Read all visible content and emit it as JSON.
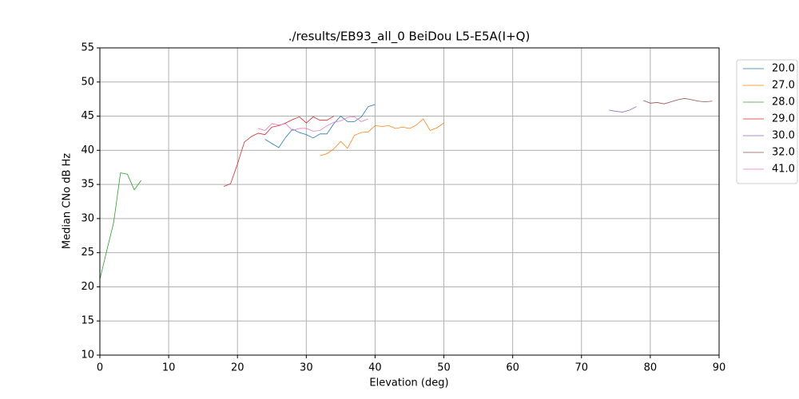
{
  "chart_data": {
    "type": "line",
    "title": "./results/EB93_all_0 BeiDou L5-E5A(I+Q)",
    "x_label": "Elevation (deg)",
    "y_label": "Median CNo dB Hz",
    "xlim": [
      0,
      90
    ],
    "ylim": [
      10,
      55
    ],
    "xticks": [
      0,
      10,
      20,
      30,
      40,
      50,
      60,
      70,
      80,
      90
    ],
    "yticks": [
      10,
      15,
      20,
      25,
      30,
      35,
      40,
      45,
      50,
      55
    ],
    "grid": true,
    "legend": "outside-upper-right",
    "series": [
      {
        "name": "20.0",
        "color": "#1f77b4",
        "x": [
          24,
          25,
          26,
          27,
          28,
          29,
          30,
          31,
          32,
          33,
          34,
          35,
          36,
          37,
          38,
          39,
          40
        ],
        "values": [
          41.6,
          41.0,
          40.4,
          41.9,
          43.1,
          42.6,
          42.3,
          41.8,
          42.4,
          42.4,
          43.9,
          45.0,
          44.2,
          44.2,
          44.9,
          46.4,
          46.7
        ]
      },
      {
        "name": "27.0",
        "color": "#ff7f0e",
        "x": [
          32,
          33,
          34,
          35,
          36,
          37,
          38,
          39,
          40,
          41,
          42,
          43,
          44,
          45,
          46,
          47,
          48,
          49,
          50
        ],
        "values": [
          39.2,
          39.5,
          40.2,
          41.3,
          40.3,
          42.2,
          42.6,
          42.7,
          43.6,
          43.5,
          43.6,
          43.2,
          43.4,
          43.2,
          43.7,
          44.6,
          42.9,
          43.3,
          44.0
        ]
      },
      {
        "name": "28.0",
        "color": "#2ca02c",
        "x": [
          0,
          1,
          2,
          3,
          4,
          5,
          6
        ],
        "values": [
          21.1,
          25.3,
          29.4,
          36.7,
          36.5,
          34.2,
          35.6
        ]
      },
      {
        "name": "29.0",
        "color": "#d62728",
        "x": [
          18,
          19,
          20,
          21,
          22,
          23,
          24,
          25,
          26,
          27,
          28,
          29,
          30,
          31,
          32,
          33,
          34
        ],
        "values": [
          34.7,
          35.1,
          38.0,
          41.2,
          42.0,
          42.5,
          42.3,
          43.4,
          43.6,
          44.0,
          44.5,
          44.9,
          44.0,
          44.9,
          44.4,
          44.4,
          45.0
        ]
      },
      {
        "name": "30.0",
        "color": "#9467bd",
        "x": [
          74,
          75,
          76,
          77,
          78
        ],
        "values": [
          45.9,
          45.7,
          45.6,
          45.9,
          46.4
        ]
      },
      {
        "name": "32.0",
        "color": "#8c564b",
        "x": [
          79,
          80,
          81,
          82,
          83,
          84,
          85,
          86,
          87,
          88,
          89
        ],
        "values": [
          47.3,
          46.9,
          47.0,
          46.8,
          47.1,
          47.4,
          47.6,
          47.4,
          47.2,
          47.1,
          47.2
        ]
      },
      {
        "name": "41.0",
        "color": "#e377c2",
        "x": [
          23,
          24,
          25,
          26,
          27,
          28,
          29,
          30,
          31,
          32,
          33,
          34,
          35,
          36,
          37,
          38,
          39
        ],
        "values": [
          43.2,
          42.9,
          43.9,
          43.7,
          43.9,
          42.9,
          43.2,
          43.2,
          42.8,
          42.9,
          43.6,
          44.1,
          44.3,
          44.8,
          44.9,
          44.2,
          44.6
        ]
      }
    ]
  }
}
